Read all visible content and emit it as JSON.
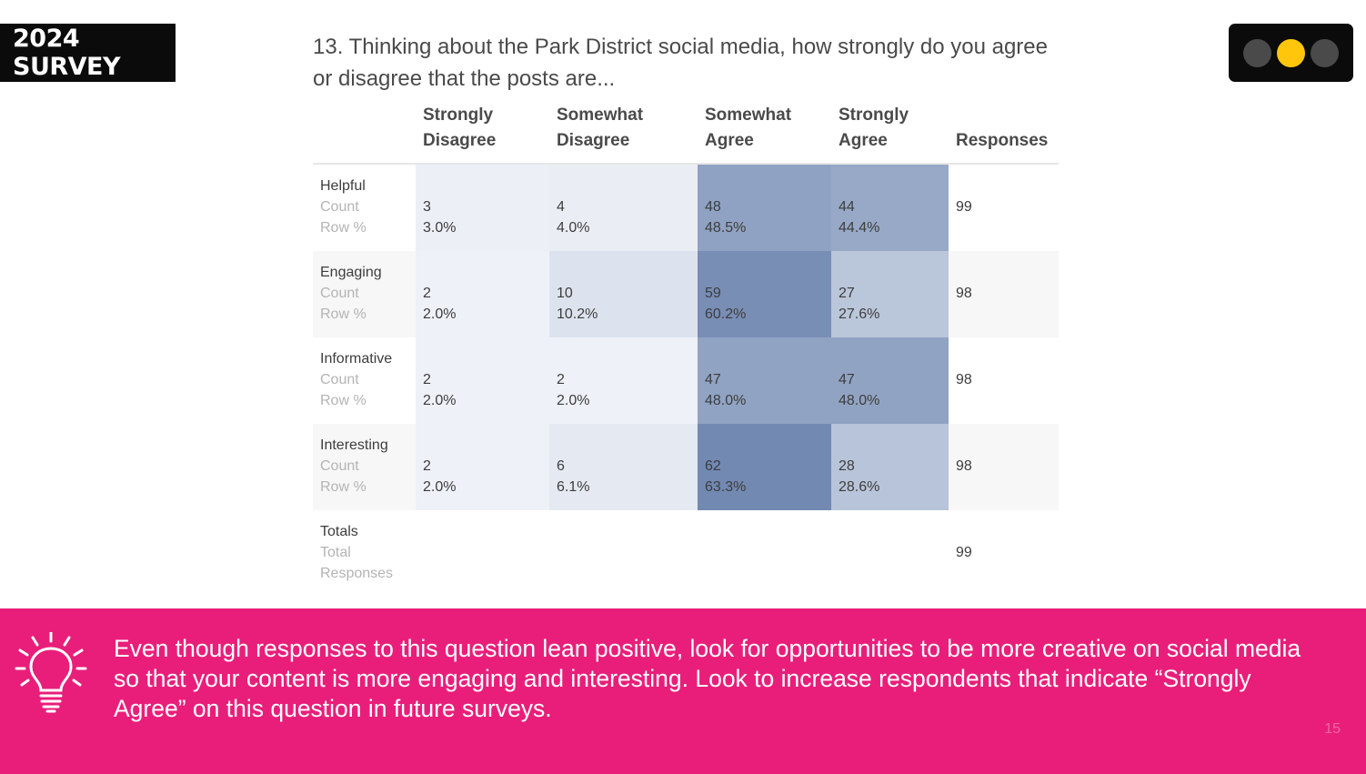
{
  "badge": {
    "label": "2024 SURVEY"
  },
  "nav_dots": {
    "count": 3,
    "active_index": 1,
    "active_color": "#ffc60b",
    "inactive_color": "#4a4a4a"
  },
  "question": {
    "text": "13. Thinking about the Park District social media, how strongly do you agree or disagree that the posts are..."
  },
  "table": {
    "headers": {
      "strongly_disagree": [
        "Strongly",
        "Disagree"
      ],
      "somewhat_disagree": [
        "Somewhat",
        "Disagree"
      ],
      "somewhat_agree": [
        "Somewhat",
        "Agree"
      ],
      "strongly_agree": [
        "Strongly",
        "Agree"
      ],
      "responses": "Responses"
    },
    "row_sublabels": {
      "count": "Count",
      "row_pct": "Row %"
    },
    "rows": [
      {
        "label": "Helpful",
        "strongly_disagree": {
          "count": "3",
          "pct": "3.0%"
        },
        "somewhat_disagree": {
          "count": "4",
          "pct": "4.0%"
        },
        "somewhat_agree": {
          "count": "48",
          "pct": "48.5%"
        },
        "strongly_agree": {
          "count": "44",
          "pct": "44.4%"
        },
        "responses": "99"
      },
      {
        "label": "Engaging",
        "strongly_disagree": {
          "count": "2",
          "pct": "2.0%"
        },
        "somewhat_disagree": {
          "count": "10",
          "pct": "10.2%"
        },
        "somewhat_agree": {
          "count": "59",
          "pct": "60.2%"
        },
        "strongly_agree": {
          "count": "27",
          "pct": "27.6%"
        },
        "responses": "98"
      },
      {
        "label": "Informative",
        "strongly_disagree": {
          "count": "2",
          "pct": "2.0%"
        },
        "somewhat_disagree": {
          "count": "2",
          "pct": "2.0%"
        },
        "somewhat_agree": {
          "count": "47",
          "pct": "48.0%"
        },
        "strongly_agree": {
          "count": "47",
          "pct": "48.0%"
        },
        "responses": "98"
      },
      {
        "label": "Interesting",
        "strongly_disagree": {
          "count": "2",
          "pct": "2.0%"
        },
        "somewhat_disagree": {
          "count": "6",
          "pct": "6.1%"
        },
        "somewhat_agree": {
          "count": "62",
          "pct": "63.3%"
        },
        "strongly_agree": {
          "count": "28",
          "pct": "28.6%"
        },
        "responses": "98"
      }
    ],
    "totals": {
      "label": "Totals",
      "sublabel_1": "Total",
      "sublabel_2": "Responses",
      "responses": "99"
    },
    "heat_color": "#6f86b0"
  },
  "footer": {
    "icon": "lightbulb-icon",
    "background": "#e91e7a",
    "text": "Even though responses to this question lean positive, look for opportunities to be more creative on social media so that your content is more engaging and interesting. Look to increase respondents that indicate “Strongly Agree” on this question in future surveys.",
    "page_number": "15"
  }
}
